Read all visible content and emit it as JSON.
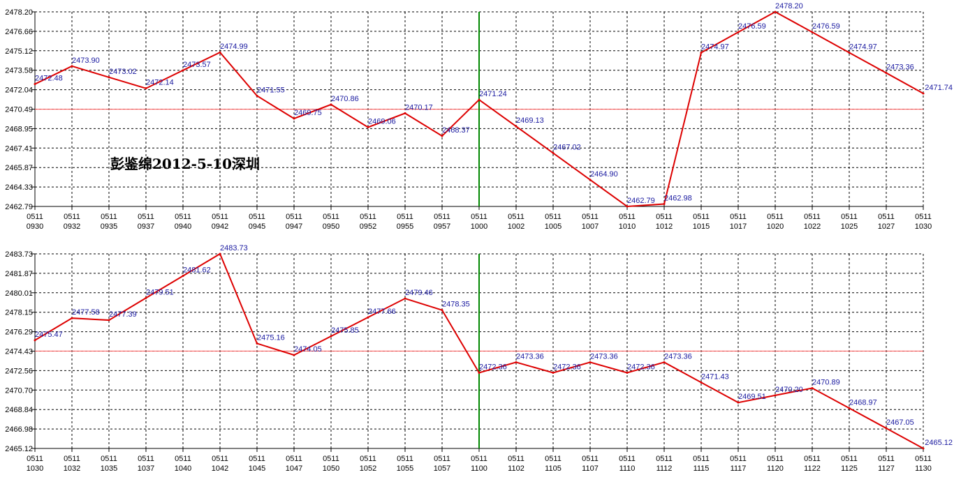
{
  "colors": {
    "line": "#dd0000",
    "reference": "#ff5555",
    "marker": "#008800",
    "grid": "#000000",
    "label": "#1a1aa0"
  },
  "chart_data": [
    {
      "type": "line",
      "annotation": "彭鉴绵2012-5-10深圳",
      "ylim": [
        2462.79,
        2478.2
      ],
      "y_ticks": [
        "2478.20",
        "2476.66",
        "2475.12",
        "2473.58",
        "2472.04",
        "2470.49",
        "2468.95",
        "2467.41",
        "2465.87",
        "2464.33",
        "2462.79"
      ],
      "reference_line": 2470.49,
      "marker_index": 12,
      "x_ticks": [
        [
          "0511",
          "0930"
        ],
        [
          "0511",
          "0932"
        ],
        [
          "0511",
          "0935"
        ],
        [
          "0511",
          "0937"
        ],
        [
          "0511",
          "0940"
        ],
        [
          "0511",
          "0942"
        ],
        [
          "0511",
          "0945"
        ],
        [
          "0511",
          "0947"
        ],
        [
          "0511",
          "0950"
        ],
        [
          "0511",
          "0952"
        ],
        [
          "0511",
          "0955"
        ],
        [
          "0511",
          "0957"
        ],
        [
          "0511",
          "1000"
        ],
        [
          "0511",
          "1002"
        ],
        [
          "0511",
          "1005"
        ],
        [
          "0511",
          "1007"
        ],
        [
          "0511",
          "1010"
        ],
        [
          "0511",
          "1012"
        ],
        [
          "0511",
          "1015"
        ],
        [
          "0511",
          "1017"
        ],
        [
          "0511",
          "1020"
        ],
        [
          "0511",
          "1022"
        ],
        [
          "0511",
          "1025"
        ],
        [
          "0511",
          "1027"
        ],
        [
          "0511",
          "1030"
        ]
      ],
      "points": [
        {
          "i": 0,
          "y": 2472.48,
          "label": "2472.48"
        },
        {
          "i": 1,
          "y": 2473.9,
          "label": "2473.90"
        },
        {
          "i": 2,
          "y": 2473.02,
          "label": "2473.02"
        },
        {
          "i": 3,
          "y": 2472.14,
          "label": "2472.14"
        },
        {
          "i": 4,
          "y": 2473.57,
          "label": "2473.57"
        },
        {
          "i": 5,
          "y": 2474.99,
          "label": "2474.99"
        },
        {
          "i": 6,
          "y": 2471.55,
          "label": "2471.55"
        },
        {
          "i": 7,
          "y": 2469.75,
          "label": "2469.75"
        },
        {
          "i": 8,
          "y": 2470.86,
          "label": "2470.86"
        },
        {
          "i": 9,
          "y": 2469.06,
          "label": "2469.06"
        },
        {
          "i": 10,
          "y": 2470.17,
          "label": "2470.17"
        },
        {
          "i": 11,
          "y": 2468.37,
          "label": "2468.37"
        },
        {
          "i": 12,
          "y": 2471.24,
          "label": "2471.24"
        },
        {
          "i": 13,
          "y": 2469.13,
          "label": "2469.13"
        },
        {
          "i": 14,
          "y": 2467.02,
          "label": "2467.02"
        },
        {
          "i": 15,
          "y": 2464.9,
          "label": "2464.90"
        },
        {
          "i": 16,
          "y": 2462.79,
          "label": "2462.79"
        },
        {
          "i": 17,
          "y": 2462.98,
          "label": "2462.98"
        },
        {
          "i": 18,
          "y": 2474.97,
          "label": "2474.97"
        },
        {
          "i": 19,
          "y": 2476.59,
          "label": "2476.59"
        },
        {
          "i": 20,
          "y": 2478.2,
          "label": "2478.20"
        },
        {
          "i": 21,
          "y": 2476.59,
          "label": "2476.59"
        },
        {
          "i": 22,
          "y": 2474.97,
          "label": "2474.97"
        },
        {
          "i": 23,
          "y": 2473.36,
          "label": "2473.36"
        },
        {
          "i": 24,
          "y": 2471.74,
          "label": "2471.74"
        }
      ]
    },
    {
      "type": "line",
      "annotation": "",
      "ylim": [
        2465.12,
        2483.73
      ],
      "y_ticks": [
        "2483.73",
        "2481.87",
        "2480.01",
        "2478.15",
        "2476.29",
        "2474.43",
        "2472.56",
        "2470.70",
        "2468.84",
        "2466.98",
        "2465.12"
      ],
      "reference_line": 2474.43,
      "marker_index": 12,
      "x_ticks": [
        [
          "0511",
          "1030"
        ],
        [
          "0511",
          "1032"
        ],
        [
          "0511",
          "1035"
        ],
        [
          "0511",
          "1037"
        ],
        [
          "0511",
          "1040"
        ],
        [
          "0511",
          "1042"
        ],
        [
          "0511",
          "1045"
        ],
        [
          "0511",
          "1047"
        ],
        [
          "0511",
          "1050"
        ],
        [
          "0511",
          "1052"
        ],
        [
          "0511",
          "1055"
        ],
        [
          "0511",
          "1057"
        ],
        [
          "0511",
          "1100"
        ],
        [
          "0511",
          "1102"
        ],
        [
          "0511",
          "1105"
        ],
        [
          "0511",
          "1107"
        ],
        [
          "0511",
          "1110"
        ],
        [
          "0511",
          "1112"
        ],
        [
          "0511",
          "1115"
        ],
        [
          "0511",
          "1117"
        ],
        [
          "0511",
          "1120"
        ],
        [
          "0511",
          "1122"
        ],
        [
          "0511",
          "1125"
        ],
        [
          "0511",
          "1127"
        ],
        [
          "0511",
          "1130"
        ]
      ],
      "points": [
        {
          "i": 0,
          "y": 2475.47,
          "label": "2475.47"
        },
        {
          "i": 1,
          "y": 2477.58,
          "label": "2477.58"
        },
        {
          "i": 2,
          "y": 2477.39,
          "label": "2477.39"
        },
        {
          "i": 3,
          "y": 2479.51,
          "label": "2479.51"
        },
        {
          "i": 4,
          "y": 2481.62,
          "label": "2481.62"
        },
        {
          "i": 5,
          "y": 2483.73,
          "label": "2483.73"
        },
        {
          "i": 6,
          "y": 2475.16,
          "label": "2475.16"
        },
        {
          "i": 7,
          "y": 2474.05,
          "label": "2474.05"
        },
        {
          "i": 8,
          "y": 2475.85,
          "label": "2475.85"
        },
        {
          "i": 9,
          "y": 2477.66,
          "label": "2477.66"
        },
        {
          "i": 10,
          "y": 2479.46,
          "label": "2479.46"
        },
        {
          "i": 11,
          "y": 2478.35,
          "label": "2478.35"
        },
        {
          "i": 12,
          "y": 2472.36,
          "label": "2472.36"
        },
        {
          "i": 13,
          "y": 2473.36,
          "label": "2473.36"
        },
        {
          "i": 14,
          "y": 2472.36,
          "label": "2472.36"
        },
        {
          "i": 15,
          "y": 2473.36,
          "label": "2473.36"
        },
        {
          "i": 16,
          "y": 2472.36,
          "label": "2472.36"
        },
        {
          "i": 17,
          "y": 2473.36,
          "label": "2473.36"
        },
        {
          "i": 18,
          "y": 2471.43,
          "label": "2471.43"
        },
        {
          "i": 19,
          "y": 2469.51,
          "label": "2469.51"
        },
        {
          "i": 20,
          "y": 2470.2,
          "label": "2470.20"
        },
        {
          "i": 21,
          "y": 2470.89,
          "label": "2470.89"
        },
        {
          "i": 22,
          "y": 2468.97,
          "label": "2468.97"
        },
        {
          "i": 23,
          "y": 2467.05,
          "label": "2467.05"
        },
        {
          "i": 24,
          "y": 2465.12,
          "label": "2465.12"
        }
      ]
    }
  ]
}
